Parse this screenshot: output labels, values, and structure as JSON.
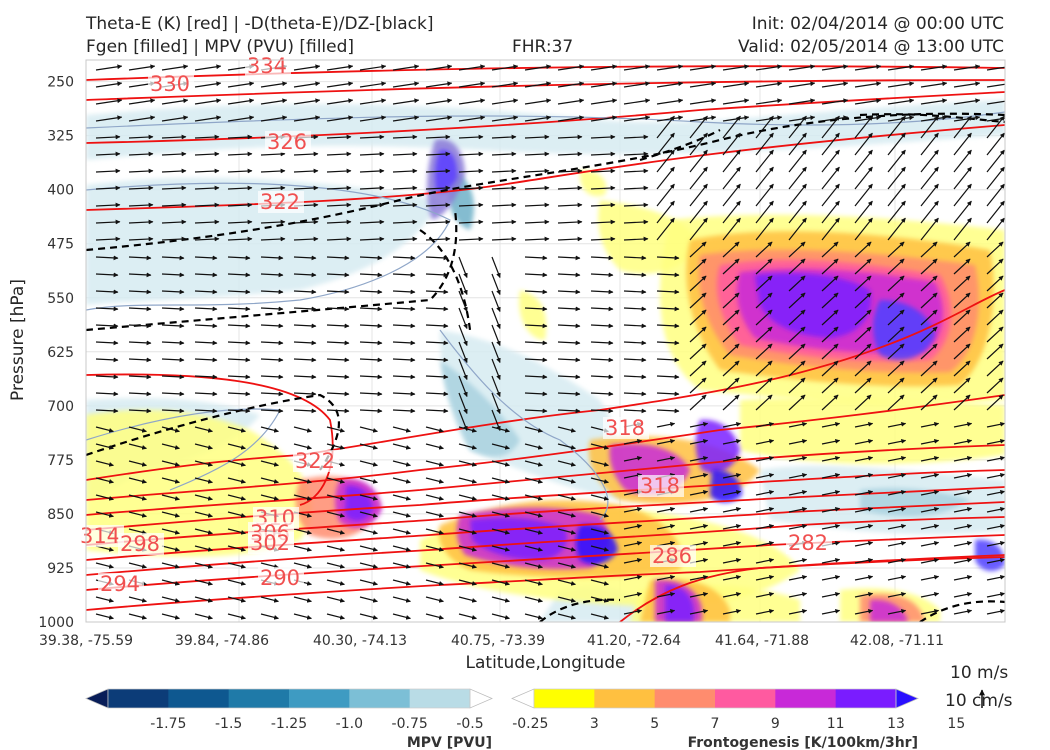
{
  "header": {
    "title_line1_left": "Theta-E (K) [red] | -D(theta-E)/DZ-[black]",
    "title_line2_left": "Fgen [filled] | MPV (PVU) [filled]",
    "fhr": "FHR:37",
    "init": "Init: 02/04/2014 @ 00:00 UTC",
    "valid": "Valid: 02/05/2014 @ 13:00 UTC"
  },
  "chart_data": {
    "type": "cross-section",
    "xlabel": "Latitude,Longitude",
    "ylabel": "Pressure [hPa]",
    "x_ticks": [
      "39.38, -75.59",
      "39.84, -74.86",
      "40.30, -74.13",
      "40.75, -73.39",
      "41.20, -72.64",
      "41.64, -71.88",
      "42.08, -71.11"
    ],
    "y_ticks": [
      250,
      325,
      400,
      475,
      550,
      625,
      700,
      775,
      850,
      925,
      1000
    ],
    "ylim": [
      1000,
      220
    ],
    "theta_e_labels": [
      "334",
      "330",
      "326",
      "322",
      "322",
      "318",
      "318",
      "314",
      "310",
      "306",
      "302",
      "298",
      "294",
      "290",
      "286",
      "282"
    ],
    "wind_reference": {
      "u_label": "10 m/s",
      "v_label": "10 cm/s"
    },
    "colorbars": [
      {
        "name": "MPV [PVU]",
        "ticks": [
          "-1.75",
          "-1.5",
          "-1.25",
          "-1.0",
          "-0.75",
          "-0.5",
          "-0.25"
        ],
        "colors": [
          "#081d58",
          "#0c3c78",
          "#0e5890",
          "#1f7aa8",
          "#3e9bc2",
          "#7cbfd6",
          "#b9dce6",
          "#ffffff"
        ]
      },
      {
        "name": "Frontogenesis [K/100km/3hr]",
        "ticks": [
          "3",
          "5",
          "7",
          "9",
          "11",
          "13",
          "15"
        ],
        "colors": [
          "#ffffff",
          "#ffff00",
          "#ffc040",
          "#ff8c6e",
          "#ff5aa0",
          "#c829d8",
          "#7a1cff",
          "#2a10ff"
        ]
      }
    ]
  }
}
